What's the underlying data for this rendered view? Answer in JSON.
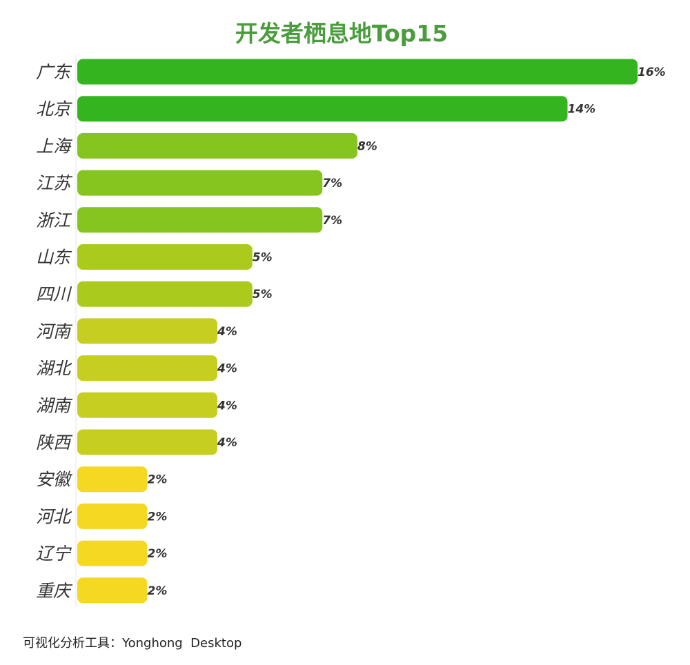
{
  "chart_data": {
    "type": "bar",
    "orientation": "horizontal",
    "title": "开发者栖息地Top15",
    "categories": [
      "广东",
      "北京",
      "上海",
      "江苏",
      "浙江",
      "山东",
      "四川",
      "河南",
      "湖北",
      "湖南",
      "陕西",
      "安徽",
      "河北",
      "辽宁",
      "重庆"
    ],
    "values": [
      16,
      14,
      8,
      7,
      7,
      5,
      5,
      4,
      4,
      4,
      4,
      2,
      2,
      2,
      2
    ],
    "value_labels": [
      "16%",
      "14%",
      "8%",
      "7%",
      "7%",
      "5%",
      "5%",
      "4%",
      "4%",
      "4%",
      "4%",
      "2%",
      "2%",
      "2%",
      "2%"
    ],
    "unit": "%",
    "xlim": [
      0,
      16
    ],
    "grid": false,
    "legend": "none",
    "colors": [
      "#34b51f",
      "#34b51f",
      "#86c41f",
      "#86c41f",
      "#86c41f",
      "#aacb1e",
      "#aacb1e",
      "#c6cf20",
      "#c6cf20",
      "#c6cf20",
      "#c6cf20",
      "#f4d822",
      "#f4d822",
      "#f4d822",
      "#f4d822"
    ]
  },
  "colors": {
    "title": "#4a9c3c",
    "axis_line": "#e6e6e6",
    "label_text": "#333333"
  },
  "footer": {
    "text": "可视化分析工具：Yonghong  Desktop"
  }
}
